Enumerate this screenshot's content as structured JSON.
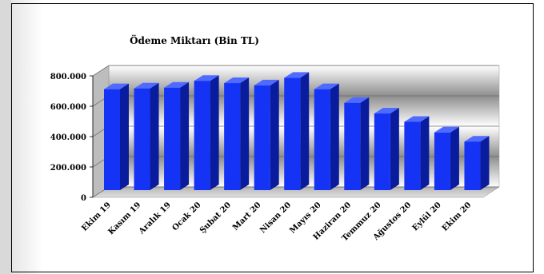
{
  "chart_data": {
    "type": "bar",
    "title": "Ödeme Miktarı (Bin TL)",
    "xlabel": "",
    "ylabel": "",
    "categories": [
      "Ekim 19",
      "Kasım 19",
      "Aralık 19",
      "Ocak 20",
      "Şubat 20",
      "Mart 20",
      "Nisan 20",
      "Mayıs 20",
      "Haziran 20",
      "Temmuz 20",
      "Ağustos 20",
      "Eylül 20",
      "Ekim 20"
    ],
    "values": [
      665000,
      670000,
      675000,
      720000,
      705000,
      690000,
      740000,
      665000,
      575000,
      505000,
      450000,
      380000,
      320000
    ],
    "ylim": [
      0,
      800000
    ],
    "yticks": [
      "0",
      "200.000",
      "400.000",
      "600.000",
      "800.000"
    ],
    "ytick_values": [
      0,
      200000,
      400000,
      600000,
      800000
    ],
    "grid": true,
    "legend": "none",
    "colors": {
      "bar_front": "#1433f5",
      "bar_side": "#0a1c9e",
      "bar_top": "#4f6bff",
      "backwall_light": "#ffffff",
      "backwall_dark": "#8a8a8a"
    }
  }
}
